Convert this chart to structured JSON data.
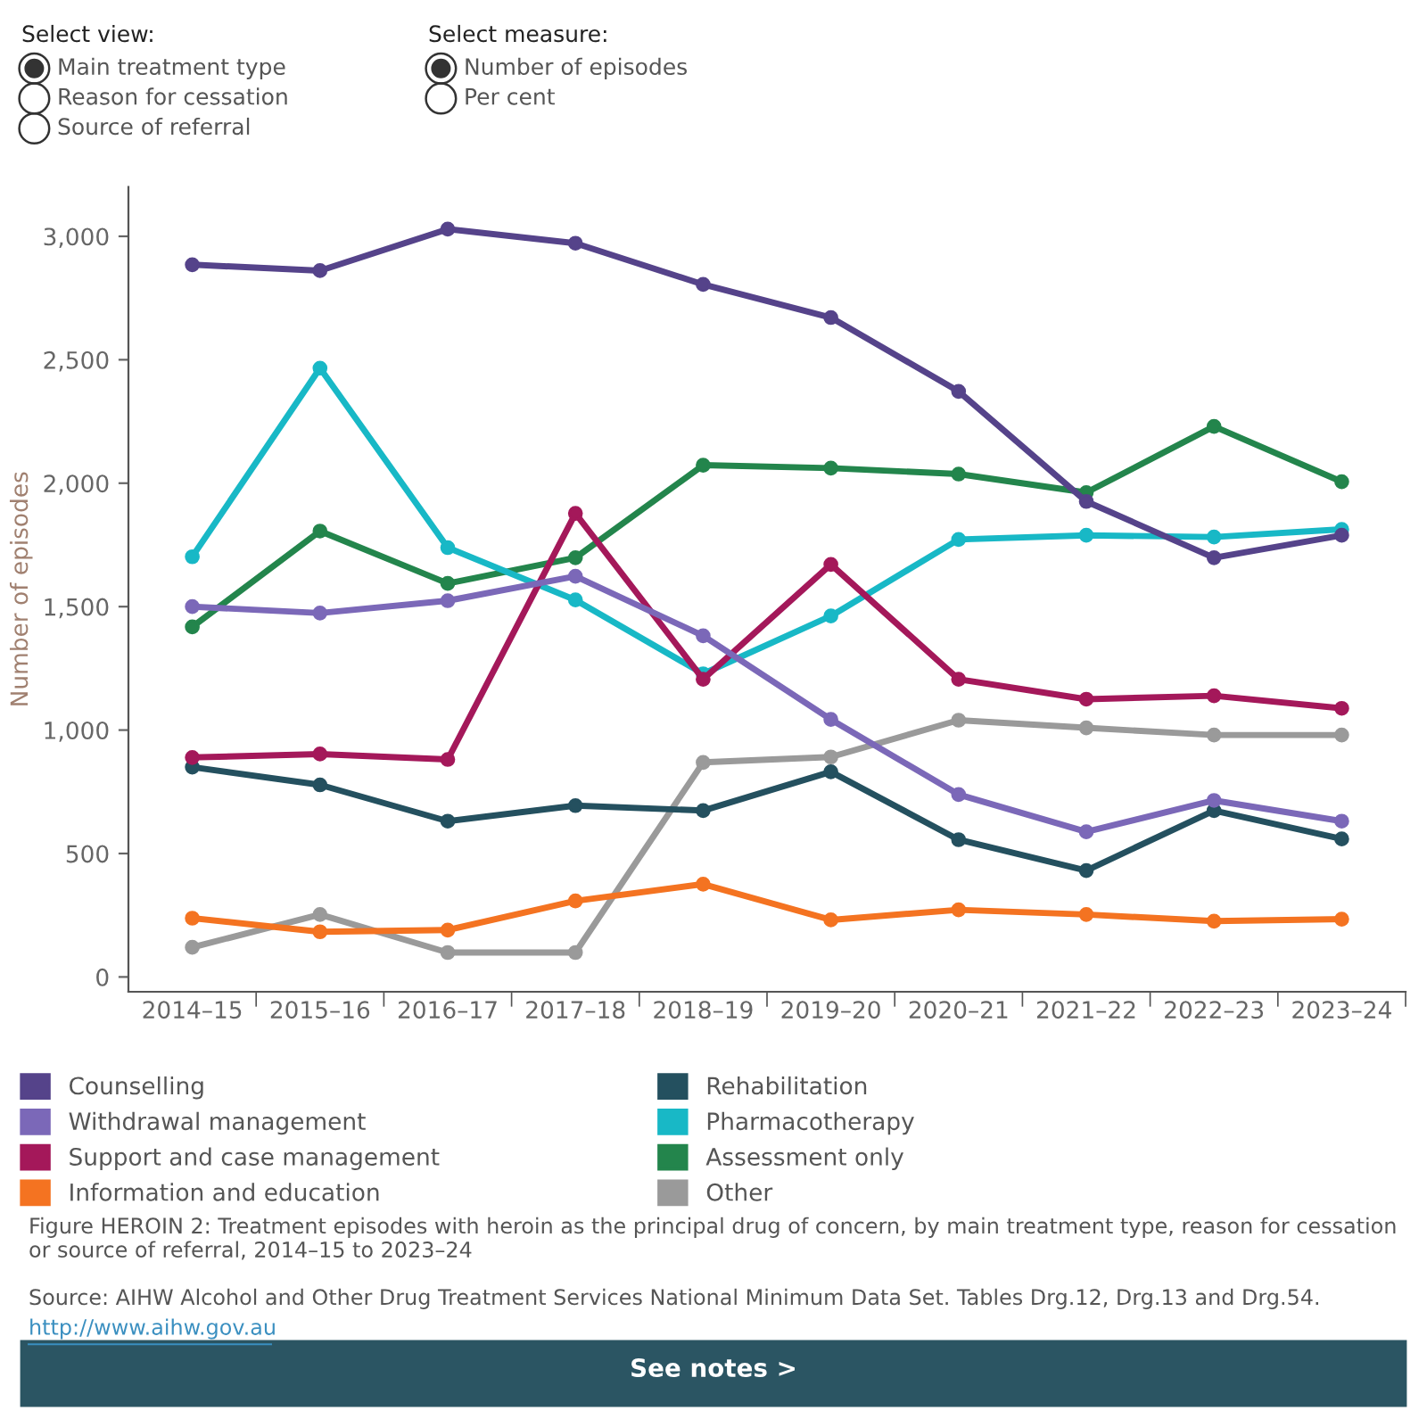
{
  "chart_data": {
    "type": "line",
    "ylabel": "Number of episodes",
    "categories": [
      "2014–15",
      "2015–16",
      "2016–17",
      "2017–18",
      "2018–19",
      "2019–20",
      "2020–21",
      "2021–22",
      "2022–23",
      "2023–24"
    ],
    "series": [
      {
        "name": "Counselling",
        "color": "#55438a",
        "values": [
          2885,
          2861,
          3029,
          2972,
          2805,
          2671,
          2372,
          1926,
          1698,
          1789
        ]
      },
      {
        "name": "Withdrawal management",
        "color": "#7b68b8",
        "values": [
          1500,
          1474,
          1524,
          1623,
          1382,
          1043,
          739,
          588,
          715,
          631
        ]
      },
      {
        "name": "Support and case management",
        "color": "#a4185a",
        "values": [
          889,
          903,
          881,
          1878,
          1206,
          1671,
          1206,
          1125,
          1139,
          1088
        ]
      },
      {
        "name": "Information and education",
        "color": "#f47321",
        "values": [
          238,
          183,
          190,
          308,
          376,
          231,
          272,
          253,
          226,
          234
        ]
      },
      {
        "name": "Rehabilitation",
        "color": "#24505f",
        "values": [
          850,
          778,
          631,
          694,
          674,
          831,
          556,
          431,
          674,
          559
        ]
      },
      {
        "name": "Pharmacotherapy",
        "color": "#18b8c6",
        "values": [
          1702,
          2466,
          1739,
          1527,
          1228,
          1462,
          1772,
          1789,
          1782,
          1813
        ]
      },
      {
        "name": "Assessment only",
        "color": "#23854c",
        "values": [
          1418,
          1806,
          1594,
          1698,
          2073,
          2061,
          2037,
          1962,
          2230,
          2006
        ]
      },
      {
        "name": "Other",
        "color": "#9a9a9a",
        "values": [
          120,
          253,
          99,
          99,
          869,
          891,
          1040,
          1009,
          980,
          980
        ]
      }
    ],
    "ylim": [
      -60,
      3200
    ],
    "yticks": [
      0,
      {
        "value": 500,
        "label": "500"
      },
      {
        "value": 1000,
        "label": "1,000"
      },
      {
        "value": 1500,
        "label": "1,500"
      },
      {
        "value": 2000,
        "label": "2,000"
      },
      {
        "value": 2500,
        "label": "2,500"
      },
      {
        "value": 3000,
        "label": "3,000"
      }
    ],
    "grid": false,
    "legend": "bottom",
    "marker": "circle",
    "line_style": "solid",
    "annotations": [
      "Select view:",
      "Main treatment type",
      "Reason for cessation",
      "Source of referral",
      "Select measure:",
      "Number of episodes",
      "Per cent",
      "Figure HEROIN 2: Treatment episodes with heroin as the principal drug of concern, by main treatment type, reason for cessation or source of referral, 2014–15 to 2023–24",
      "Source: AIHW Alcohol and Other Drug Treatment Services National Minimum Data Set. Tables Drg.12, Drg.13 and Drg.54.",
      "http://www.aihw.gov.au",
      "See notes >"
    ]
  }
}
